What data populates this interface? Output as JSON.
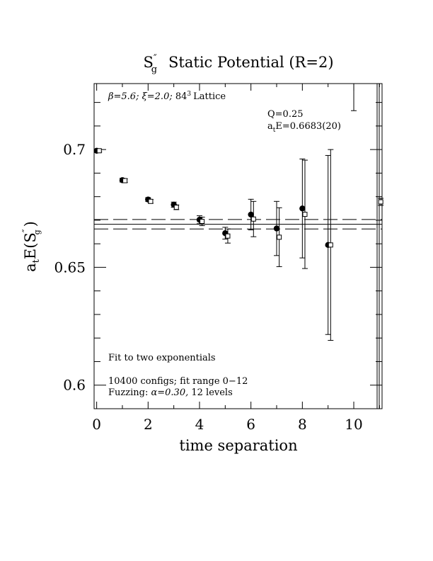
{
  "chart_data": {
    "type": "scatter",
    "title": {
      "symbol": "S",
      "sub": "g",
      "sup": "″",
      "rest": "Static Potential (R=2)"
    },
    "xlabel": "time separation",
    "ylabel": {
      "prefix": "a",
      "sub": "t",
      "mid": "E(S",
      "sup": "″",
      "sub2": "g",
      "suffix": ")"
    },
    "xlim": [
      -0.1,
      11.1
    ],
    "ylim": [
      0.59,
      0.728
    ],
    "x_ticks": [
      0,
      2,
      4,
      6,
      8,
      10
    ],
    "x_tick_labels": [
      "0",
      "2",
      "4",
      "6",
      "8",
      "10"
    ],
    "y_ticks": [
      0.6,
      0.65,
      0.7
    ],
    "y_tick_labels": [
      "0.6",
      "0.65",
      "0.7"
    ],
    "annotations": {
      "lattice": {
        "beta": "β=5.6;",
        "xi": "ξ=2.0;",
        "lat": "84",
        "lat_sup": "3",
        "lat_rest": "Lattice"
      },
      "q": "Q=0.25",
      "fit_value": {
        "prefix": "a",
        "sub": "t",
        "rest": "E=0.6683(20)"
      },
      "fit_type": "Fit to two exponentials",
      "configs": "10400 configs; fit range 0−12",
      "fuzzing": {
        "prefix": "Fuzzing:",
        "alpha": "α=0.30,",
        "rest": "12 levels"
      }
    },
    "fit": {
      "value": 0.6683,
      "error": 0.002,
      "x_range": [
        -0.1,
        11.1
      ]
    },
    "series": [
      {
        "marker": "filled-circle",
        "points": [
          {
            "x": 0,
            "y": 0.6995,
            "err": 0.0005
          },
          {
            "x": 1,
            "y": 0.687,
            "err": 0.0008
          },
          {
            "x": 2,
            "y": 0.6788,
            "err": 0.0008
          },
          {
            "x": 3,
            "y": 0.6766,
            "err": 0.0011
          },
          {
            "x": 4,
            "y": 0.6702,
            "err": 0.0017
          },
          {
            "x": 5,
            "y": 0.6645,
            "err": 0.0025
          },
          {
            "x": 6,
            "y": 0.6724,
            "err": 0.0065
          },
          {
            "x": 7,
            "y": 0.6665,
            "err": 0.0115
          },
          {
            "x": 8,
            "y": 0.675,
            "err": 0.021
          },
          {
            "x": 9,
            "y": 0.6595,
            "err": 0.038
          }
        ]
      },
      {
        "marker": "open-square",
        "points": [
          {
            "x": 0.1,
            "y": 0.6995,
            "err": 0.0005
          },
          {
            "x": 1.1,
            "y": 0.6868,
            "err": 0.0008
          },
          {
            "x": 2.1,
            "y": 0.678,
            "err": 0.0008
          },
          {
            "x": 3.1,
            "y": 0.6755,
            "err": 0.001
          },
          {
            "x": 4.1,
            "y": 0.6695,
            "err": 0.0018
          },
          {
            "x": 5.1,
            "y": 0.6633,
            "err": 0.003
          },
          {
            "x": 6.1,
            "y": 0.6705,
            "err": 0.0075
          },
          {
            "x": 7.1,
            "y": 0.6628,
            "err": 0.0125
          },
          {
            "x": 8.1,
            "y": 0.6725,
            "err": 0.023
          },
          {
            "x": 9.1,
            "y": 0.6595,
            "err": 0.0405
          },
          {
            "x": 11.05,
            "y": 0.6778,
            "err": 0.0015
          }
        ]
      }
    ],
    "extra_error_bars": [
      {
        "x": 10,
        "y_low": 0.7165,
        "y_high": 0.729
      }
    ]
  }
}
